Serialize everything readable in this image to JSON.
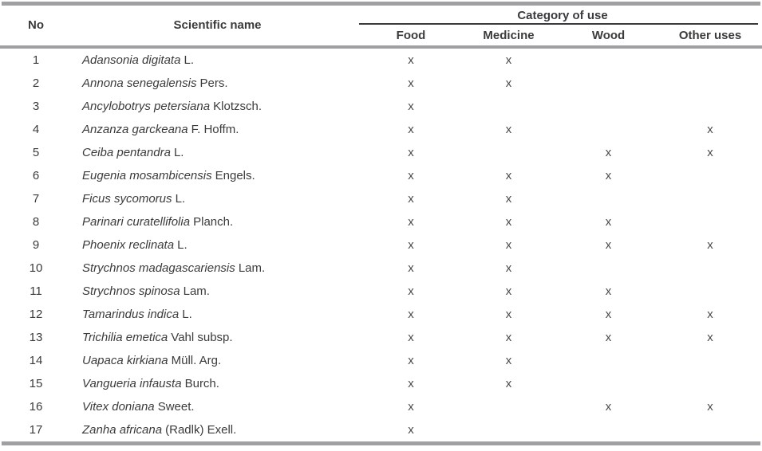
{
  "table": {
    "header": {
      "no": "No",
      "scientific_name": "Scientific name",
      "category_group": "Category of use",
      "columns": [
        "Food",
        "Medicine",
        "Wood",
        "Other uses"
      ]
    },
    "rows": [
      {
        "no": "1",
        "italic": "Adansonia digitata",
        "rest": "L.",
        "food": "x",
        "medicine": "x",
        "wood": "",
        "other": ""
      },
      {
        "no": "2",
        "italic": "Annona senegalensis",
        "rest": "Pers.",
        "food": "x",
        "medicine": "x",
        "wood": "",
        "other": ""
      },
      {
        "no": "3",
        "italic": "Ancylobotrys petersiana",
        "rest": "Klotzsch.",
        "food": "x",
        "medicine": "",
        "wood": "",
        "other": ""
      },
      {
        "no": "4",
        "italic": "Anzanza garckeana",
        "rest": "F. Hoffm.",
        "food": "x",
        "medicine": "x",
        "wood": "",
        "other": "x"
      },
      {
        "no": "5",
        "italic": "Ceiba pentandra",
        "rest": "L.",
        "food": "x",
        "medicine": "",
        "wood": "x",
        "other": "x"
      },
      {
        "no": "6",
        "italic": "Eugenia mosambicensis",
        "rest": "Engels.",
        "food": "x",
        "medicine": "x",
        "wood": "x",
        "other": ""
      },
      {
        "no": "7",
        "italic": "Ficus sycomorus",
        "rest": "L.",
        "food": "x",
        "medicine": "x",
        "wood": "",
        "other": ""
      },
      {
        "no": "8",
        "italic": "Parinari curatellifolia",
        "rest": "Planch.",
        "food": "x",
        "medicine": "x",
        "wood": "x",
        "other": ""
      },
      {
        "no": "9",
        "italic": "Phoenix reclinata",
        "rest": "L.",
        "food": "x",
        "medicine": "x",
        "wood": "x",
        "other": "x"
      },
      {
        "no": "10",
        "italic": "Strychnos madagascariensis",
        "rest": "Lam.",
        "food": "x",
        "medicine": "x",
        "wood": "",
        "other": ""
      },
      {
        "no": "11",
        "italic": "Strychnos spinosa",
        "rest": "Lam.",
        "food": "x",
        "medicine": "x",
        "wood": "x",
        "other": ""
      },
      {
        "no": "12",
        "italic": "Tamarindus indica",
        "rest": "L.",
        "food": "x",
        "medicine": "x",
        "wood": "x",
        "other": "x"
      },
      {
        "no": "13",
        "italic": "Trichilia emetica",
        "rest": "Vahl subsp.",
        "food": "x",
        "medicine": "x",
        "wood": "x",
        "other": "x"
      },
      {
        "no": "14",
        "italic": "Uapaca kirkiana",
        "rest": "Müll. Arg.",
        "food": "x",
        "medicine": "x",
        "wood": "",
        "other": ""
      },
      {
        "no": "15",
        "italic": "Vangueria infausta",
        "rest": "Burch.",
        "food": "x",
        "medicine": "x",
        "wood": "",
        "other": ""
      },
      {
        "no": "16",
        "italic": "Vitex doniana",
        "rest": "Sweet.",
        "food": "x",
        "medicine": "",
        "wood": "x",
        "other": "x"
      },
      {
        "no": "17",
        "italic": "Zanha africana",
        "rest": "(Radlk) Exell.",
        "food": "x",
        "medicine": "",
        "wood": "",
        "other": ""
      }
    ],
    "colors": {
      "text": "#3b3b3d",
      "mark": "#4a4a4c",
      "rule_thick": "#a0a0a2",
      "rule_thin": "#3a3a3c",
      "background": "#ffffff"
    }
  }
}
